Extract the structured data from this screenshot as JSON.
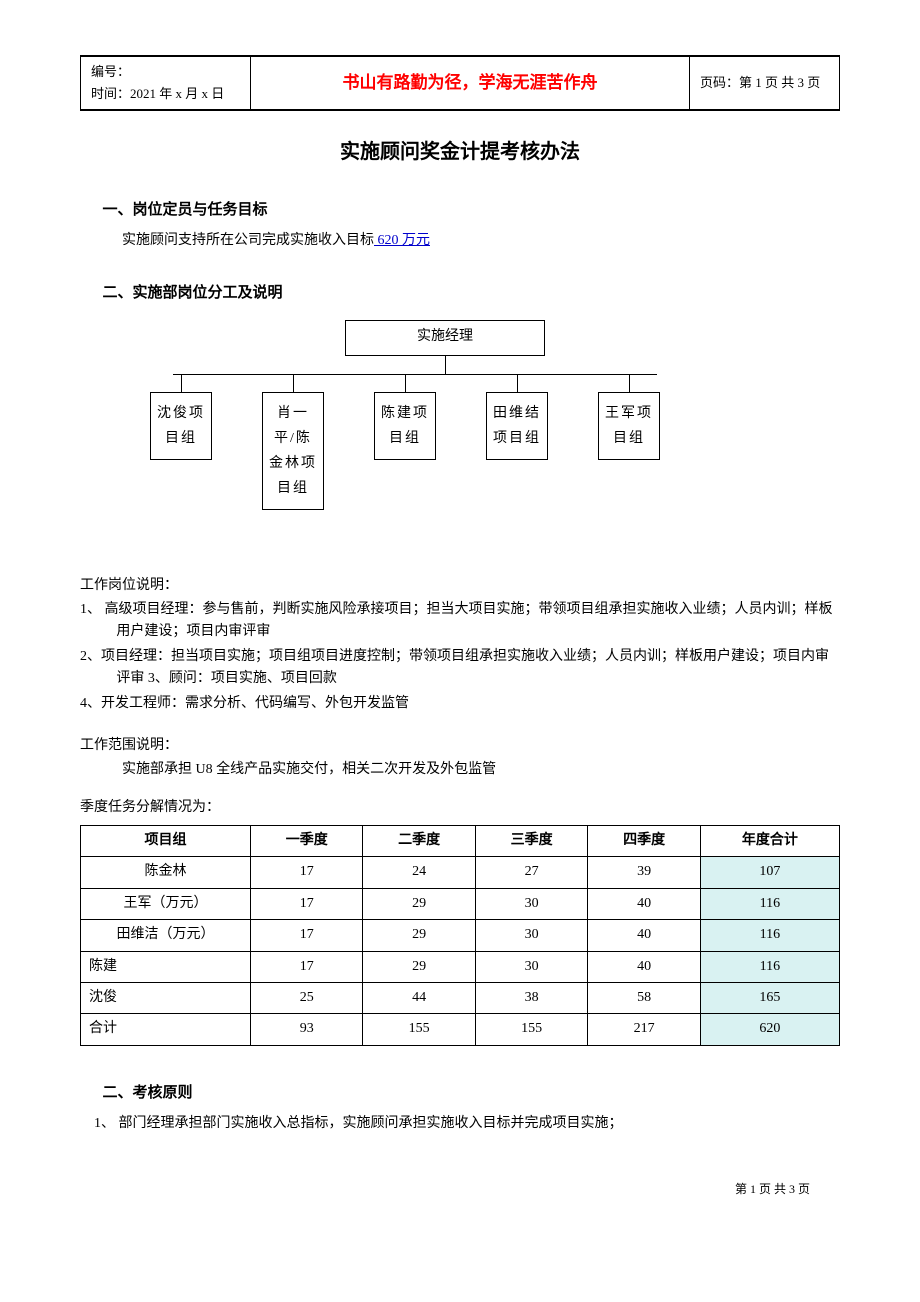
{
  "header": {
    "serial_label": "编号：",
    "time_label": "时间：2021 年 x 月 x 日",
    "motto": "书山有路勤为径，学海无涯苦作舟",
    "page_label": "页码：第 1 页 共 3 页"
  },
  "title": "实施顾问奖金计提考核办法",
  "section1": {
    "heading": "一、岗位定员与任务目标",
    "line_prefix": "实施顾问支持所在公司完成实施收入目标",
    "target": " 620 万元"
  },
  "section2": {
    "heading": "二、实施部岗位分工及说明"
  },
  "org": {
    "root": "实施经理",
    "boxes": [
      "沈俊项目组",
      "肖一平/陈金林项目组",
      "陈建项目组",
      "田维结项目组",
      "王军项目组"
    ]
  },
  "job_desc_title": "工作岗位说明：",
  "job_desc": [
    "1、 高级项目经理：参与售前，判断实施风险承接项目；担当大项目实施；带领项目组承担实施收入业绩；人员内训；样板用户建设；项目内审评审",
    "2、项目经理：担当项目实施；项目组项目进度控制；带领项目组承担实施收入业绩；人员内训；样板用户建设；项目内审评审 3、顾问：项目实施、项目回款",
    "4、开发工程师：需求分析、代码编写、外包开发监管"
  ],
  "scope_title": "工作范围说明：",
  "scope_line": "实施部承担 U8 全线产品实施交付，相关二次开发及外包监管",
  "quarter_title": "季度任务分解情况为：",
  "table": {
    "columns": [
      "项目组",
      "一季度",
      "二季度",
      "三季度",
      "四季度",
      "年度合计"
    ],
    "rows": [
      {
        "name": "陈金林",
        "align": "center",
        "q": [
          17,
          24,
          27,
          39
        ],
        "total": 107,
        "hl": true
      },
      {
        "name": "王军（万元）",
        "align": "center",
        "q": [
          17,
          29,
          30,
          40
        ],
        "total": 116,
        "hl": true
      },
      {
        "name": "田维洁（万元）",
        "align": "center",
        "q": [
          17,
          29,
          30,
          40
        ],
        "total": 116,
        "hl": true
      },
      {
        "name": "陈建",
        "align": "left",
        "q": [
          17,
          29,
          30,
          40
        ],
        "total": 116,
        "hl": true
      },
      {
        "name": "沈俊",
        "align": "left",
        "q": [
          25,
          44,
          38,
          58
        ],
        "total": 165,
        "hl": true
      },
      {
        "name": "合计",
        "align": "left",
        "q": [
          93,
          155,
          155,
          217
        ],
        "total": 620,
        "hl": true
      }
    ],
    "highlight_color": "#d9f2f2"
  },
  "section3": {
    "heading": "二、考核原则",
    "line1": "1、 部门经理承担部门实施收入总指标，实施顾问承担实施收入目标并完成项目实施；"
  },
  "footer": "第 1 页 共 3 页"
}
